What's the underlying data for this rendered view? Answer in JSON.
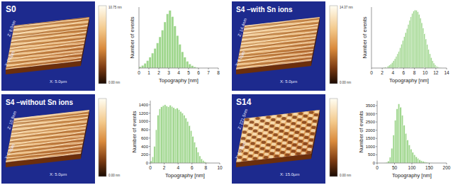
{
  "afm_images": [
    {
      "label": "S0",
      "z_label": "Z: 8.0nm",
      "y_label": "Y: 5.0µm",
      "x_label": "X: 5.0µm",
      "colorbar_top": "10.75 nm",
      "colorbar_bottom": "0.00 nm"
    },
    {
      "label": "S4 –without Sn ions",
      "z_label": "Z: 10.8nm",
      "y_label": "Y: 5.0µm",
      "x_label": "X: 5.0µm",
      "colorbar_bottom": "0.00 nm"
    },
    {
      "label": "S4 –with Sn ions",
      "z_label": "Z: 14.4nm",
      "y_label": "Y: 5.0µm",
      "x_label": "X: 5.0µm",
      "colorbar_top": "14.37 nm",
      "colorbar_bottom": "0.00 nm"
    },
    {
      "label": "S14",
      "z_label": "Z: 221.5nm",
      "y_label": "Y: 15.0µm",
      "x_label": "X: 15.0µm",
      "colorbar_bottom": "0.00 nm"
    }
  ],
  "chart_data": [
    {
      "type": "histogram",
      "x_label": "Topography [nm]",
      "y_label": "Number of events",
      "color": "#9ed68c",
      "grid": false,
      "tick_labels": "x",
      "bins": [
        0,
        0.25,
        0.5,
        0.75,
        1,
        1.25,
        1.5,
        1.75,
        2,
        2.25,
        2.5,
        2.75,
        3,
        3.25,
        3.5,
        3.75,
        4,
        4.25,
        4.5,
        4.75,
        5,
        5.25,
        5.5,
        5.75,
        6
      ],
      "values": [
        20,
        40,
        70,
        110,
        160,
        220,
        290,
        370,
        460,
        560,
        680,
        800,
        850,
        760,
        620,
        480,
        350,
        240,
        160,
        100,
        60,
        35,
        18,
        8
      ],
      "xlim": [
        0,
        8
      ],
      "xticks": [
        0,
        1,
        2,
        3,
        4,
        5,
        6,
        7,
        8
      ],
      "ylim": [
        0,
        900
      ]
    },
    {
      "type": "histogram",
      "x_label": "Topography [nm]",
      "y_label": "Number of events",
      "color": "#9ed68c",
      "grid": false,
      "bins": [
        0,
        0.25,
        0.5,
        0.75,
        1,
        1.25,
        1.5,
        1.75,
        2,
        2.25,
        2.5,
        2.75,
        3,
        3.25,
        3.5,
        3.75,
        4,
        4.25,
        4.5,
        4.75,
        5,
        5.25,
        5.5,
        5.75,
        6,
        6.25,
        6.5,
        6.75,
        7,
        7.25,
        7.5,
        7.75,
        8,
        8.25,
        8.5
      ],
      "values": [
        50,
        150,
        400,
        800,
        1150,
        1300,
        1350,
        1380,
        1400,
        1370,
        1350,
        1390,
        1360,
        1330,
        1300,
        1320,
        1280,
        1240,
        1200,
        1150,
        1080,
        1000,
        900,
        780,
        640,
        500,
        380,
        260,
        170,
        100,
        60,
        30,
        15,
        5
      ],
      "xlim": [
        0,
        10
      ],
      "xticks": [
        0,
        2,
        4,
        6,
        8,
        10
      ],
      "ylim": [
        0,
        1500
      ],
      "yticks": [
        0,
        200,
        400,
        600,
        800,
        1000,
        1200,
        1400
      ]
    },
    {
      "type": "histogram",
      "x_label": "Topography [nm]",
      "y_label": "Number of events",
      "color": "#9ed68c",
      "grid": false,
      "tick_labels": "x",
      "bins": [
        2,
        2.25,
        2.5,
        2.75,
        3,
        3.25,
        3.5,
        3.75,
        4,
        4.25,
        4.5,
        4.75,
        5,
        5.25,
        5.5,
        5.75,
        6,
        6.25,
        6.5,
        6.75,
        7,
        7.25,
        7.5,
        7.75,
        8,
        8.25,
        8.5,
        8.75,
        9,
        9.25,
        9.5,
        9.75,
        10,
        10.25,
        10.5,
        10.75,
        11,
        11.25,
        11.5,
        11.75,
        12,
        12.25,
        12.5,
        12.75,
        13
      ],
      "values": [
        10,
        20,
        30,
        50,
        70,
        100,
        140,
        190,
        250,
        320,
        400,
        490,
        590,
        700,
        820,
        950,
        1080,
        1220,
        1360,
        1500,
        1640,
        1770,
        1880,
        1960,
        2000,
        1990,
        1940,
        1850,
        1720,
        1560,
        1380,
        1190,
        1000,
        810,
        640,
        490,
        360,
        250,
        170,
        110,
        70,
        40,
        20,
        10
      ],
      "xlim": [
        0,
        14
      ],
      "xticks": [
        0,
        2,
        4,
        6,
        8,
        10,
        12,
        14
      ],
      "ylim": [
        0,
        2100
      ]
    },
    {
      "type": "histogram",
      "x_label": "Topography [nm]",
      "y_label": "Number of events",
      "color": "#9ed68c",
      "grid": false,
      "bins": [
        20,
        25,
        30,
        35,
        40,
        45,
        50,
        55,
        60,
        65,
        70,
        75,
        80,
        85,
        90,
        95,
        100,
        105,
        110,
        115,
        120,
        125,
        130,
        135,
        140,
        145,
        150,
        155,
        160
      ],
      "values": [
        10,
        40,
        120,
        350,
        900,
        1700,
        2600,
        3300,
        3600,
        3400,
        2900,
        2300,
        1800,
        1400,
        1100,
        850,
        650,
        500,
        380,
        280,
        200,
        140,
        100,
        70,
        45,
        25,
        12,
        5
      ],
      "xlim": [
        0,
        200
      ],
      "xticks": [
        0,
        50,
        100,
        150,
        200
      ],
      "ylim": [
        0,
        3800
      ],
      "yticks": [
        0,
        500,
        1000,
        1500,
        2000,
        2500,
        3000,
        3500
      ]
    }
  ]
}
